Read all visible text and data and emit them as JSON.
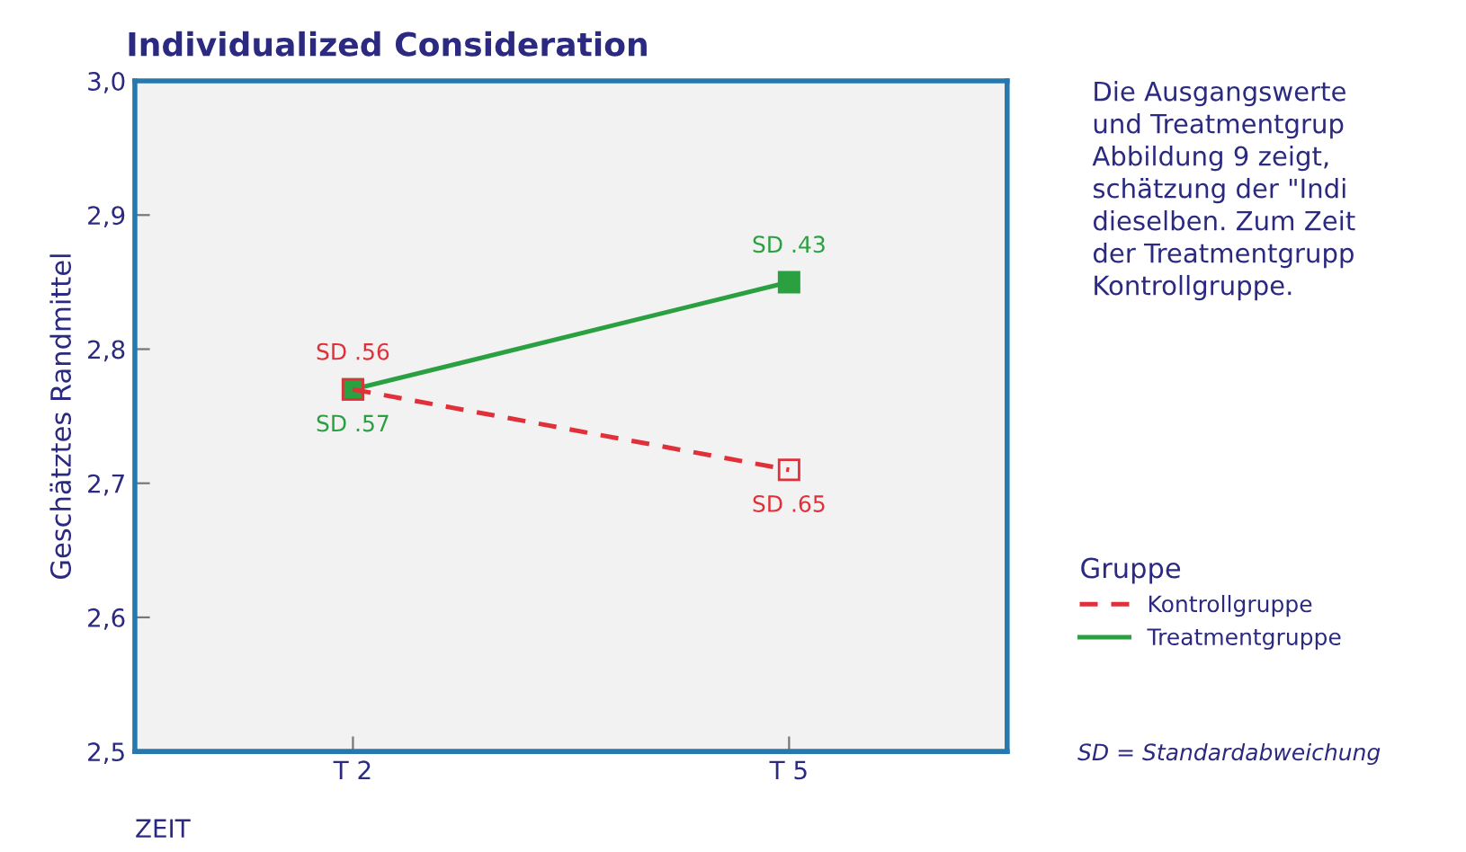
{
  "chart_data": {
    "type": "line",
    "title": "Individualized Consideration",
    "xlabel": "ZEIT",
    "ylabel": "Geschätztes Randmittel",
    "legend_title": "Gruppe",
    "categories": [
      "T 2",
      "T 5"
    ],
    "series": [
      {
        "name": "Kontrollgruppe",
        "color": "#e0303a",
        "values": [
          2.77,
          2.71
        ],
        "line_style": "dashed",
        "value_labels": [
          "SD .56",
          "SD .65"
        ]
      },
      {
        "name": "Treatmentgruppe",
        "color": "#2aa040",
        "values": [
          2.77,
          2.85
        ],
        "line_style": "solid",
        "value_labels": [
          "SD .57",
          "SD .43"
        ]
      }
    ],
    "ylim": [
      2.5,
      3.0
    ],
    "yticks": [
      {
        "value": 2.5,
        "label": "2,5"
      },
      {
        "value": 2.6,
        "label": "2,6"
      },
      {
        "value": 2.7,
        "label": "2,7"
      },
      {
        "value": 2.8,
        "label": "2,8"
      },
      {
        "value": 2.9,
        "label": "2,9"
      },
      {
        "value": 3.0,
        "label": "3,0"
      }
    ],
    "marker": "square",
    "grid": false,
    "legend": "right",
    "annotations": [
      "Die Ausgangswerte\nund Treatmentgrup\nAbbildung 9 zeigt,\nschätzung der \"Indi\ndieselben. Zum Zeit\nder Treatmentgrupp\nKontrollgruppe.",
      "SD = Standardabweichung"
    ]
  }
}
